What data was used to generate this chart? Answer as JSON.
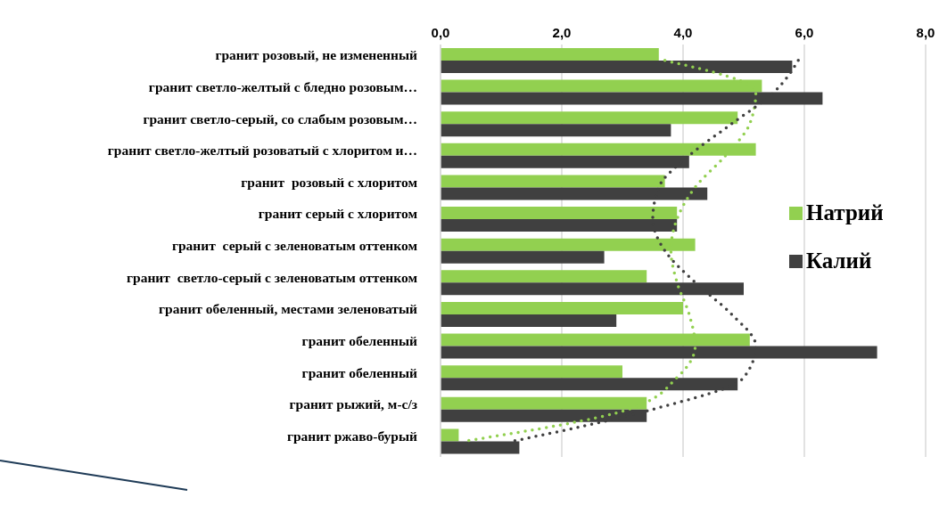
{
  "chart_data": {
    "type": "bar",
    "orientation": "horizontal",
    "categories": [
      "гранит розовый, не измененный",
      "гранит светло-желтый с бледно розовым…",
      "гранит светло-серый, со слабым розовым…",
      "гранит светло-желтый розоватый с хлоритом и…",
      "гранит  розовый с хлоритом",
      "гранит серый с хлоритом",
      "гранит  серый с зеленоватым оттенком",
      "гранит  светло-серый с зеленоватым оттенком",
      "гранит обеленный, местами зеленоватый",
      "гранит обеленный",
      "гранит обеленный",
      "гранит рыжий, м-с/з",
      "гранит ржаво-бурый"
    ],
    "series": [
      {
        "name": "Натрий",
        "color": "#92d050",
        "values": [
          3.6,
          5.3,
          4.9,
          5.2,
          3.7,
          3.9,
          4.2,
          3.4,
          4.0,
          5.1,
          3.0,
          3.4,
          0.3
        ]
      },
      {
        "name": "Калий",
        "color": "#404040",
        "values": [
          5.8,
          6.3,
          3.8,
          4.1,
          4.4,
          3.9,
          2.7,
          5.0,
          2.9,
          7.2,
          4.9,
          3.4,
          1.3
        ]
      },
      {
        "type": "line",
        "color": "#92d050",
        "values": [
          3.7,
          5.2,
          5.1,
          4.7,
          4.2,
          3.9,
          3.8,
          3.9,
          4.1,
          4.2,
          3.9,
          3.1,
          0.4
        ]
      },
      {
        "type": "line",
        "color": "#404040",
        "values": [
          5.9,
          5.5,
          4.8,
          4.1,
          3.6,
          3.5,
          3.7,
          4.2,
          4.8,
          5.2,
          5.0,
          3.5,
          1.2
        ]
      }
    ],
    "xlim": [
      0,
      8
    ],
    "xticks": [
      {
        "value": 0,
        "label": "0,0"
      },
      {
        "value": 2,
        "label": "2,0"
      },
      {
        "value": 4,
        "label": "4,0"
      },
      {
        "value": 6,
        "label": "6,0"
      },
      {
        "value": 8,
        "label": "8,0"
      }
    ],
    "grid": "x",
    "legend": "right",
    "marker": "none",
    "line_style": "dotted"
  }
}
